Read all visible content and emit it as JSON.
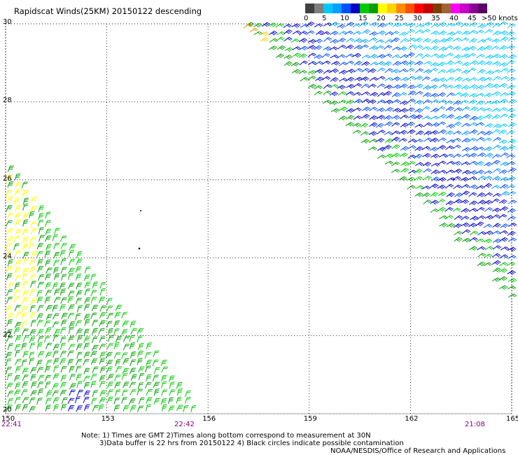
{
  "title": "Rapidscat Winds(25KM) 20150122 descending",
  "legend": {
    "colors": [
      "#404040",
      "#7f7f7f",
      "#00c8ff",
      "#00a0ff",
      "#0050ff",
      "#0000c8",
      "#00c800",
      "#00a000",
      "#ffff00",
      "#ffd200",
      "#ff8c00",
      "#ff5000",
      "#ff0000",
      "#c80000",
      "#7f3c00",
      "#a06432",
      "#ff00ff",
      "#c800c8",
      "#8c0096",
      "#5a0064"
    ],
    "labels": [
      "0",
      "5",
      "10",
      "15",
      "20",
      "25",
      "30",
      "35",
      "40",
      "45",
      ">50 knots"
    ],
    "unit": "knots"
  },
  "axes": {
    "x_ticks": [
      "150",
      "153",
      "156",
      "159",
      "162",
      "165"
    ],
    "y_ticks": [
      "30",
      "28",
      "26",
      "24",
      "22",
      "20"
    ]
  },
  "times": [
    "22:41",
    "22:42",
    "21:08"
  ],
  "notes": {
    "line1": "Note: 1) Times are GMT 2)Times along bottom correspond to measurement at 30N",
    "line2": "3)Data buffer is 22 hrs from 20150122 4) Black circles indicate possible contamination",
    "line3": "NOAA/NESDIS/Office of Research and Applications"
  },
  "map": {
    "lon_range": [
      150,
      165
    ],
    "lat_range": [
      20,
      30
    ],
    "swaths": [
      {
        "name": "east",
        "color_low": "#00a000",
        "color_mid": "#0000c8",
        "color_high": "#00c8ff",
        "color_edge": "#ffff00"
      },
      {
        "name": "west",
        "color_low": "#00a000",
        "color_mid": "#00c800",
        "color_high": "#ffff00",
        "color_edge": "#0000c8"
      }
    ]
  }
}
